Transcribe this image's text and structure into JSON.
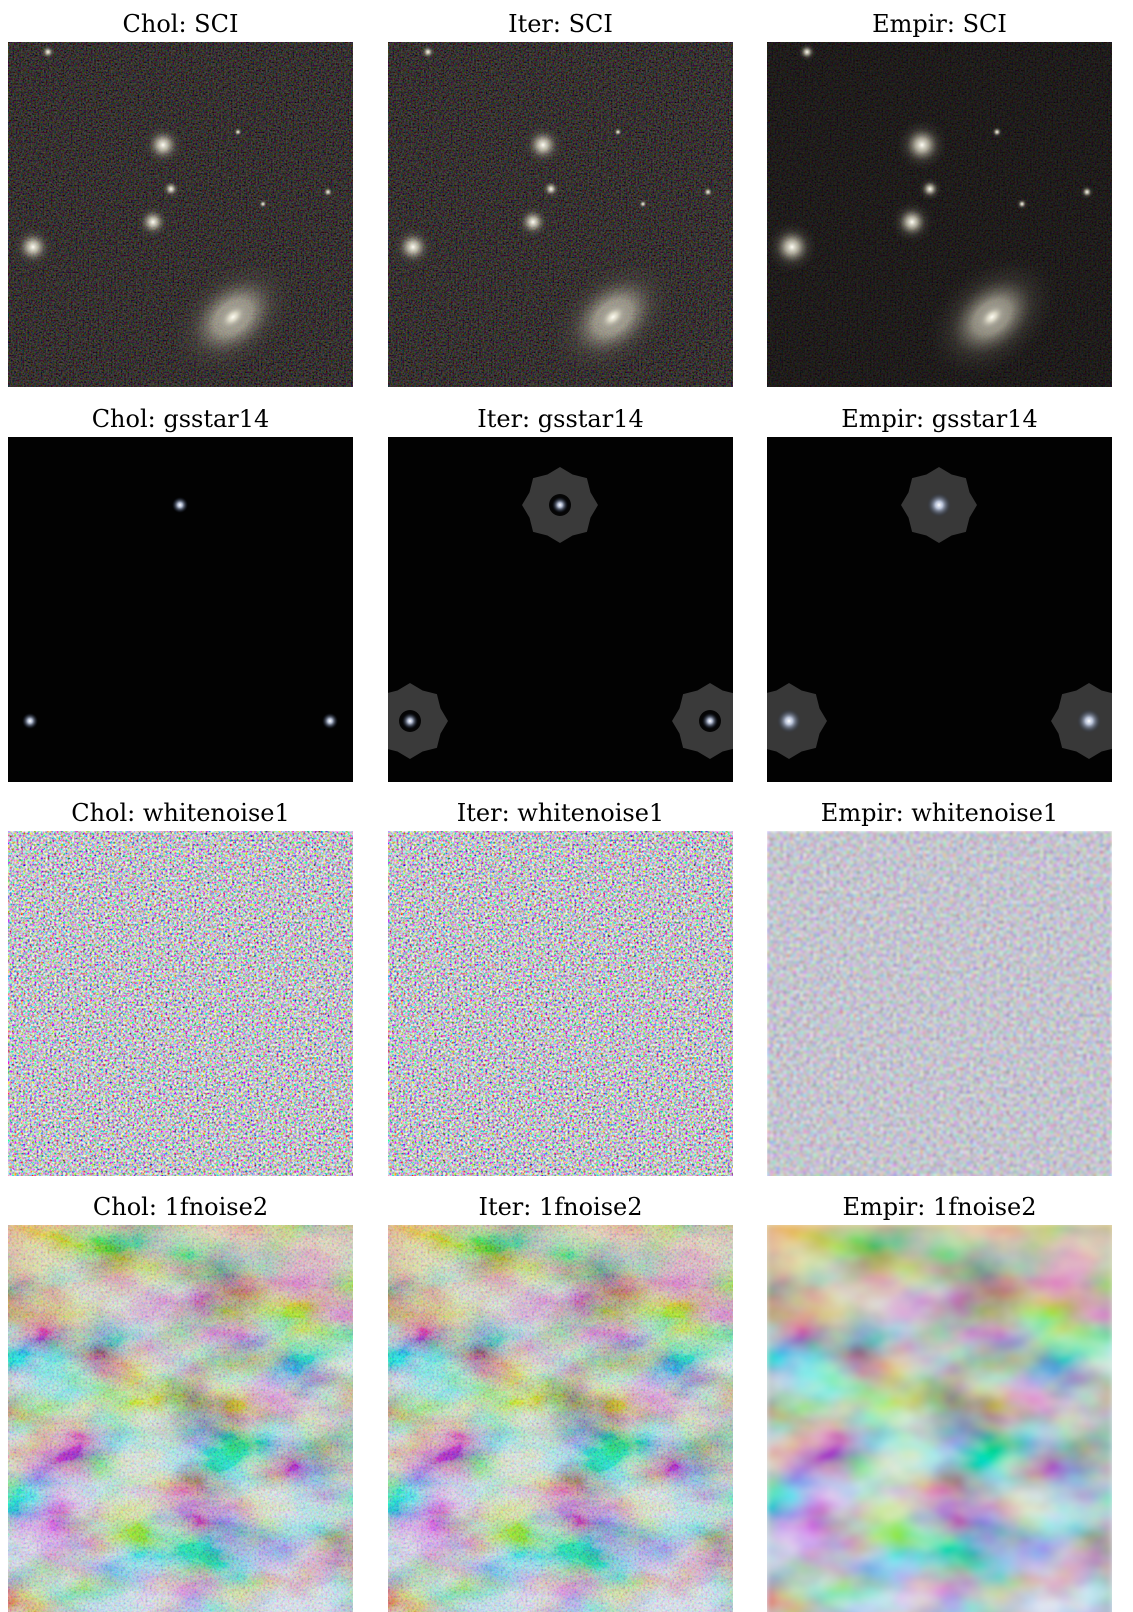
{
  "rows": [
    [
      "Chol: SCI",
      "Iter: SCI",
      "Empir: SCI"
    ],
    [
      "Chol: gsstar14",
      "Iter: gsstar14",
      "Empir: gsstar14"
    ],
    [
      "Chol: whitenoise1",
      "Iter: whitenoise1",
      "Empir: whitenoise1"
    ],
    [
      "Chol: 1fnoise2",
      "Iter: 1fnoise2",
      "Empir: 1fnoise2"
    ]
  ]
}
